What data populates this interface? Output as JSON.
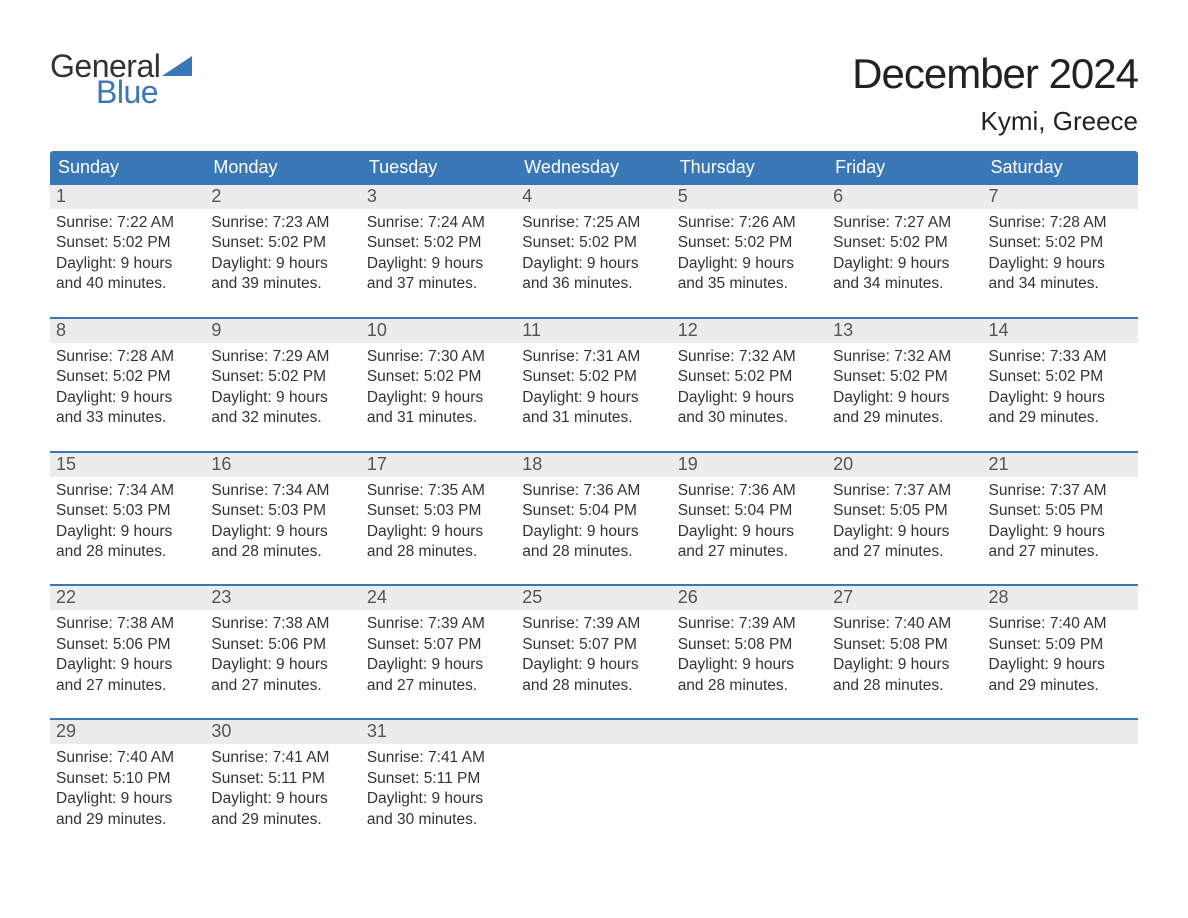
{
  "brand": {
    "word1": "General",
    "word2": "Blue",
    "flag_color": "#3a77b7"
  },
  "title": "December 2024",
  "location": "Kymi, Greece",
  "colors": {
    "header_bg": "#3a77b7",
    "header_text": "#ffffff",
    "daynum_bg": "#ececec",
    "week_border": "#3a77b7",
    "body_text": "#333333",
    "page_bg": "#ffffff"
  },
  "typography": {
    "title_fontsize": 42,
    "location_fontsize": 26,
    "weekday_fontsize": 18,
    "daynum_fontsize": 18,
    "body_fontsize": 15.5,
    "logo_fontsize": 32
  },
  "weekdays": [
    "Sunday",
    "Monday",
    "Tuesday",
    "Wednesday",
    "Thursday",
    "Friday",
    "Saturday"
  ],
  "weeks": [
    [
      {
        "n": "1",
        "sunrise": "7:22 AM",
        "sunset": "5:02 PM",
        "dl1": "9 hours",
        "dl2": "and 40 minutes."
      },
      {
        "n": "2",
        "sunrise": "7:23 AM",
        "sunset": "5:02 PM",
        "dl1": "9 hours",
        "dl2": "and 39 minutes."
      },
      {
        "n": "3",
        "sunrise": "7:24 AM",
        "sunset": "5:02 PM",
        "dl1": "9 hours",
        "dl2": "and 37 minutes."
      },
      {
        "n": "4",
        "sunrise": "7:25 AM",
        "sunset": "5:02 PM",
        "dl1": "9 hours",
        "dl2": "and 36 minutes."
      },
      {
        "n": "5",
        "sunrise": "7:26 AM",
        "sunset": "5:02 PM",
        "dl1": "9 hours",
        "dl2": "and 35 minutes."
      },
      {
        "n": "6",
        "sunrise": "7:27 AM",
        "sunset": "5:02 PM",
        "dl1": "9 hours",
        "dl2": "and 34 minutes."
      },
      {
        "n": "7",
        "sunrise": "7:28 AM",
        "sunset": "5:02 PM",
        "dl1": "9 hours",
        "dl2": "and 34 minutes."
      }
    ],
    [
      {
        "n": "8",
        "sunrise": "7:28 AM",
        "sunset": "5:02 PM",
        "dl1": "9 hours",
        "dl2": "and 33 minutes."
      },
      {
        "n": "9",
        "sunrise": "7:29 AM",
        "sunset": "5:02 PM",
        "dl1": "9 hours",
        "dl2": "and 32 minutes."
      },
      {
        "n": "10",
        "sunrise": "7:30 AM",
        "sunset": "5:02 PM",
        "dl1": "9 hours",
        "dl2": "and 31 minutes."
      },
      {
        "n": "11",
        "sunrise": "7:31 AM",
        "sunset": "5:02 PM",
        "dl1": "9 hours",
        "dl2": "and 31 minutes."
      },
      {
        "n": "12",
        "sunrise": "7:32 AM",
        "sunset": "5:02 PM",
        "dl1": "9 hours",
        "dl2": "and 30 minutes."
      },
      {
        "n": "13",
        "sunrise": "7:32 AM",
        "sunset": "5:02 PM",
        "dl1": "9 hours",
        "dl2": "and 29 minutes."
      },
      {
        "n": "14",
        "sunrise": "7:33 AM",
        "sunset": "5:02 PM",
        "dl1": "9 hours",
        "dl2": "and 29 minutes."
      }
    ],
    [
      {
        "n": "15",
        "sunrise": "7:34 AM",
        "sunset": "5:03 PM",
        "dl1": "9 hours",
        "dl2": "and 28 minutes."
      },
      {
        "n": "16",
        "sunrise": "7:34 AM",
        "sunset": "5:03 PM",
        "dl1": "9 hours",
        "dl2": "and 28 minutes."
      },
      {
        "n": "17",
        "sunrise": "7:35 AM",
        "sunset": "5:03 PM",
        "dl1": "9 hours",
        "dl2": "and 28 minutes."
      },
      {
        "n": "18",
        "sunrise": "7:36 AM",
        "sunset": "5:04 PM",
        "dl1": "9 hours",
        "dl2": "and 28 minutes."
      },
      {
        "n": "19",
        "sunrise": "7:36 AM",
        "sunset": "5:04 PM",
        "dl1": "9 hours",
        "dl2": "and 27 minutes."
      },
      {
        "n": "20",
        "sunrise": "7:37 AM",
        "sunset": "5:05 PM",
        "dl1": "9 hours",
        "dl2": "and 27 minutes."
      },
      {
        "n": "21",
        "sunrise": "7:37 AM",
        "sunset": "5:05 PM",
        "dl1": "9 hours",
        "dl2": "and 27 minutes."
      }
    ],
    [
      {
        "n": "22",
        "sunrise": "7:38 AM",
        "sunset": "5:06 PM",
        "dl1": "9 hours",
        "dl2": "and 27 minutes."
      },
      {
        "n": "23",
        "sunrise": "7:38 AM",
        "sunset": "5:06 PM",
        "dl1": "9 hours",
        "dl2": "and 27 minutes."
      },
      {
        "n": "24",
        "sunrise": "7:39 AM",
        "sunset": "5:07 PM",
        "dl1": "9 hours",
        "dl2": "and 27 minutes."
      },
      {
        "n": "25",
        "sunrise": "7:39 AM",
        "sunset": "5:07 PM",
        "dl1": "9 hours",
        "dl2": "and 28 minutes."
      },
      {
        "n": "26",
        "sunrise": "7:39 AM",
        "sunset": "5:08 PM",
        "dl1": "9 hours",
        "dl2": "and 28 minutes."
      },
      {
        "n": "27",
        "sunrise": "7:40 AM",
        "sunset": "5:08 PM",
        "dl1": "9 hours",
        "dl2": "and 28 minutes."
      },
      {
        "n": "28",
        "sunrise": "7:40 AM",
        "sunset": "5:09 PM",
        "dl1": "9 hours",
        "dl2": "and 29 minutes."
      }
    ],
    [
      {
        "n": "29",
        "sunrise": "7:40 AM",
        "sunset": "5:10 PM",
        "dl1": "9 hours",
        "dl2": "and 29 minutes."
      },
      {
        "n": "30",
        "sunrise": "7:41 AM",
        "sunset": "5:11 PM",
        "dl1": "9 hours",
        "dl2": "and 29 minutes."
      },
      {
        "n": "31",
        "sunrise": "7:41 AM",
        "sunset": "5:11 PM",
        "dl1": "9 hours",
        "dl2": "and 30 minutes."
      },
      {
        "empty": true
      },
      {
        "empty": true
      },
      {
        "empty": true
      },
      {
        "empty": true
      }
    ]
  ],
  "labels": {
    "sunrise": "Sunrise: ",
    "sunset": "Sunset: ",
    "daylight": "Daylight: "
  }
}
